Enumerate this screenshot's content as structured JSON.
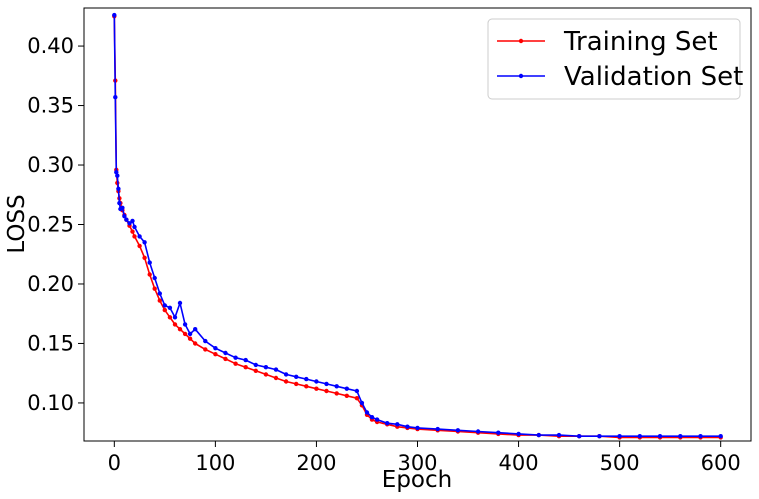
{
  "chart_data": {
    "type": "line",
    "title": "",
    "xlabel": "Epoch",
    "ylabel": "LOSS",
    "xlim": [
      -30,
      630
    ],
    "ylim": [
      0.068,
      0.432
    ],
    "x_ticks": [
      0,
      100,
      200,
      300,
      400,
      500,
      600
    ],
    "y_ticks": [
      0.1,
      0.15,
      0.2,
      0.25,
      0.3,
      0.35,
      0.4
    ],
    "y_tick_labels": [
      "0.10",
      "0.15",
      "0.20",
      "0.25",
      "0.30",
      "0.35",
      "0.40"
    ],
    "grid": false,
    "legend_position": "top-right",
    "x": [
      0,
      1,
      2,
      3,
      4,
      5,
      6,
      8,
      10,
      12,
      15,
      18,
      20,
      25,
      30,
      35,
      40,
      45,
      50,
      55,
      60,
      65,
      70,
      75,
      80,
      90,
      100,
      110,
      120,
      130,
      140,
      150,
      160,
      170,
      180,
      190,
      200,
      210,
      220,
      230,
      240,
      245,
      250,
      255,
      260,
      270,
      280,
      290,
      300,
      320,
      340,
      360,
      380,
      400,
      420,
      440,
      460,
      480,
      500,
      520,
      540,
      560,
      580,
      600
    ],
    "series": [
      {
        "name": "Training Set",
        "color": "#ff0000",
        "values": [
          0.425,
          0.371,
          0.296,
          0.285,
          0.278,
          0.272,
          0.268,
          0.262,
          0.258,
          0.254,
          0.249,
          0.244,
          0.24,
          0.232,
          0.222,
          0.208,
          0.196,
          0.186,
          0.178,
          0.172,
          0.166,
          0.162,
          0.158,
          0.154,
          0.15,
          0.145,
          0.141,
          0.137,
          0.133,
          0.13,
          0.127,
          0.124,
          0.121,
          0.118,
          0.116,
          0.114,
          0.112,
          0.11,
          0.108,
          0.106,
          0.104,
          0.098,
          0.09,
          0.086,
          0.084,
          0.082,
          0.08,
          0.079,
          0.078,
          0.077,
          0.076,
          0.075,
          0.074,
          0.073,
          0.073,
          0.072,
          0.072,
          0.072,
          0.071,
          0.071,
          0.071,
          0.071,
          0.071,
          0.071
        ]
      },
      {
        "name": "Validation Set",
        "color": "#0000ff",
        "values": [
          0.426,
          0.357,
          0.294,
          0.291,
          0.28,
          0.268,
          0.263,
          0.264,
          0.257,
          0.254,
          0.251,
          0.253,
          0.248,
          0.24,
          0.235,
          0.218,
          0.205,
          0.192,
          0.182,
          0.18,
          0.172,
          0.184,
          0.166,
          0.158,
          0.162,
          0.152,
          0.146,
          0.142,
          0.138,
          0.136,
          0.132,
          0.13,
          0.128,
          0.124,
          0.122,
          0.12,
          0.118,
          0.116,
          0.114,
          0.112,
          0.11,
          0.1,
          0.092,
          0.088,
          0.086,
          0.083,
          0.082,
          0.08,
          0.079,
          0.078,
          0.077,
          0.076,
          0.075,
          0.074,
          0.073,
          0.073,
          0.072,
          0.072,
          0.072,
          0.072,
          0.072,
          0.072,
          0.072,
          0.072
        ]
      }
    ]
  }
}
